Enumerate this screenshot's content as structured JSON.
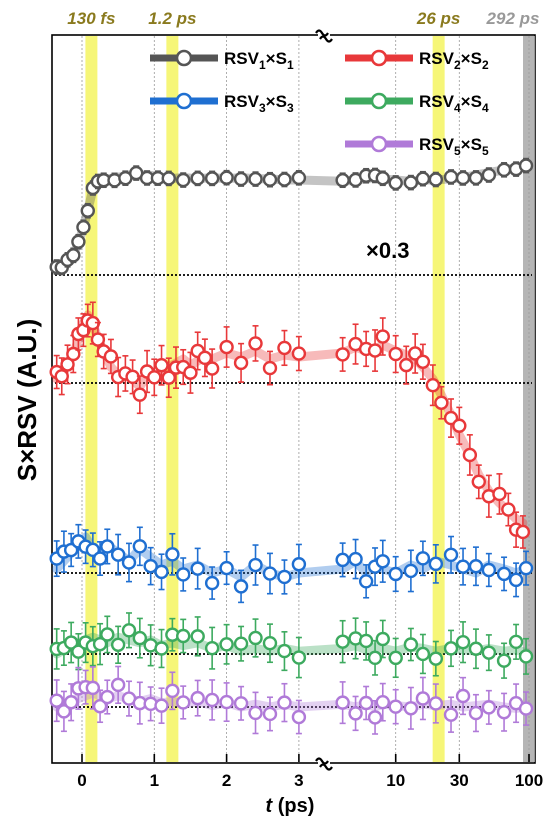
{
  "chart_data": {
    "type": "scatter",
    "title": "",
    "ylabel": "S×RSV (A.U.)",
    "xlabel_italic": "t",
    "xlabel_rest": " (ps)",
    "x_scale": "piecewise: linear -0.5 to 3 ps, then logarithmic 3 to 100 ps, with axis break at 3 ps",
    "xlim": [
      -0.4,
      100
    ],
    "x_ticks": [
      {
        "value": 0,
        "label": "0"
      },
      {
        "value": 1,
        "label": "1"
      },
      {
        "value": 2,
        "label": "2"
      },
      {
        "value": 3,
        "label": "3"
      },
      {
        "value": 10,
        "label": "10"
      },
      {
        "value": 30,
        "label": "30"
      },
      {
        "value": 100,
        "label": "100"
      }
    ],
    "top_annotations": [
      {
        "text": "130 fs",
        "x": 0.13,
        "color": "#8a7a1e"
      },
      {
        "text": "1.2 ps",
        "x": 1.25,
        "color": "#8a7a1e"
      },
      {
        "text": "26 ps",
        "x": 21,
        "color": "#8a7a1e"
      },
      {
        "text": "292 ps",
        "x": 100,
        "color": "#999999"
      }
    ],
    "highlight_bands": [
      {
        "x": 0.13,
        "color": "#f5f560"
      },
      {
        "x": 1.25,
        "color": "#f5f560"
      },
      {
        "x": 21,
        "color": "#f5f560"
      },
      {
        "x": 100,
        "color": "#a8a8a8"
      }
    ],
    "scale_annotation": "×0.3",
    "legend": [
      {
        "base": "RSV",
        "sub1": "1",
        "mid": "×S",
        "sub2": "1",
        "color": "#555555"
      },
      {
        "base": "RSV",
        "sub1": "2",
        "mid": "×S",
        "sub2": "2",
        "color": "#e8383a"
      },
      {
        "base": "RSV",
        "sub1": "3",
        "mid": "×S",
        "sub2": "3",
        "color": "#1f6fd1"
      },
      {
        "base": "RSV",
        "sub1": "4",
        "mid": "×S",
        "sub2": "4",
        "color": "#3daa5f"
      },
      {
        "base": "RSV",
        "sub1": "5",
        "mid": "×S",
        "sub2": "5",
        "color": "#b07ad8"
      }
    ],
    "series": [
      {
        "name": "RSV1×S1",
        "color": "#555555",
        "baseline": 0,
        "points": [
          [
            -0.35,
            0.4
          ],
          [
            -0.28,
            0.8
          ],
          [
            -0.2,
            1.0
          ],
          [
            -0.12,
            1.6
          ],
          [
            -0.05,
            2.6
          ],
          [
            0.02,
            3.8
          ],
          [
            0.08,
            5.2
          ],
          [
            0.15,
            6.8
          ],
          [
            0.22,
            7.4
          ],
          [
            0.3,
            7.6
          ],
          [
            0.45,
            7.8
          ],
          [
            0.6,
            7.9
          ],
          [
            0.75,
            8.0
          ],
          [
            0.9,
            8.0
          ],
          [
            1.05,
            7.9
          ],
          [
            1.2,
            7.7
          ],
          [
            1.4,
            7.8
          ],
          [
            1.6,
            7.7
          ],
          [
            1.8,
            7.8
          ],
          [
            2.0,
            7.7
          ],
          [
            2.2,
            7.8
          ],
          [
            2.4,
            7.7
          ],
          [
            2.6,
            7.7
          ],
          [
            2.8,
            7.6
          ],
          [
            3.0,
            7.6
          ],
          [
            4,
            7.5
          ],
          [
            5,
            7.6
          ],
          [
            6,
            7.7
          ],
          [
            7,
            7.8
          ],
          [
            8,
            7.7
          ],
          [
            10,
            7.6
          ],
          [
            13,
            7.5
          ],
          [
            16,
            7.6
          ],
          [
            20,
            7.6
          ],
          [
            26,
            7.7
          ],
          [
            32,
            7.8
          ],
          [
            40,
            8.0
          ],
          [
            50,
            8.2
          ],
          [
            65,
            8.4
          ],
          [
            80,
            8.6
          ],
          [
            95,
            8.8
          ]
        ]
      },
      {
        "name": "RSV2×S2",
        "color": "#e8383a",
        "baseline": 0,
        "points": [
          [
            -0.35,
            0.2
          ],
          [
            -0.28,
            0.6
          ],
          [
            -0.2,
            1.0
          ],
          [
            -0.12,
            1.4
          ],
          [
            -0.05,
            2.2
          ],
          [
            0.02,
            3.0
          ],
          [
            0.08,
            3.4
          ],
          [
            0.15,
            3.0
          ],
          [
            0.22,
            2.2
          ],
          [
            0.3,
            1.6
          ],
          [
            0.4,
            0.8
          ],
          [
            0.5,
            0.4
          ],
          [
            0.6,
            0.6
          ],
          [
            0.7,
            0.2
          ],
          [
            0.8,
            -0.2
          ],
          [
            0.9,
            0.4
          ],
          [
            1.0,
            0.2
          ],
          [
            1.1,
            0.6
          ],
          [
            1.2,
            0.8
          ],
          [
            1.3,
            1.0
          ],
          [
            1.4,
            1.2
          ],
          [
            1.5,
            0.9
          ],
          [
            1.6,
            1.1
          ],
          [
            1.7,
            1.4
          ],
          [
            1.8,
            1.2
          ],
          [
            2.0,
            1.5
          ],
          [
            2.2,
            1.3
          ],
          [
            2.4,
            1.6
          ],
          [
            2.6,
            1.2
          ],
          [
            2.8,
            1.4
          ],
          [
            3.0,
            1.3
          ],
          [
            4,
            1.5
          ],
          [
            5,
            1.8
          ],
          [
            6,
            1.6
          ],
          [
            7,
            1.7
          ],
          [
            8,
            1.9
          ],
          [
            10,
            1.6
          ],
          [
            12,
            1.4
          ],
          [
            14,
            1.2
          ],
          [
            16,
            0.8
          ],
          [
            19,
            0.2
          ],
          [
            22,
            -0.6
          ],
          [
            26,
            -1.6
          ],
          [
            30,
            -2.6
          ],
          [
            36,
            -3.6
          ],
          [
            42,
            -4.6
          ],
          [
            50,
            -5.4
          ],
          [
            60,
            -6.0
          ],
          [
            70,
            -6.4
          ],
          [
            80,
            -6.8
          ],
          [
            90,
            -7.0
          ]
        ]
      },
      {
        "name": "RSV3×S3",
        "color": "#1f6fd1",
        "baseline": 0,
        "points": [
          [
            -0.35,
            0.2
          ],
          [
            -0.25,
            0.6
          ],
          [
            -0.15,
            1.0
          ],
          [
            -0.05,
            1.4
          ],
          [
            0.05,
            1.8
          ],
          [
            0.15,
            1.2
          ],
          [
            0.25,
            0.8
          ],
          [
            0.35,
            1.4
          ],
          [
            0.5,
            1.0
          ],
          [
            0.65,
            0.6
          ],
          [
            0.8,
            1.2
          ],
          [
            0.95,
            0.8
          ],
          [
            1.1,
            0.4
          ],
          [
            1.25,
            0.6
          ],
          [
            1.4,
            0.2
          ],
          [
            1.6,
            0.4
          ],
          [
            1.8,
            0.0
          ],
          [
            2.0,
            0.2
          ],
          [
            2.2,
            -0.2
          ],
          [
            2.4,
            0.4
          ],
          [
            2.6,
            0.0
          ],
          [
            2.8,
            -0.2
          ],
          [
            3.0,
            0.0
          ],
          [
            4,
            0.2
          ],
          [
            5,
            0.6
          ],
          [
            6,
            0.0
          ],
          [
            7,
            0.4
          ],
          [
            8,
            0.2
          ],
          [
            10,
            0.0
          ],
          [
            13,
            0.4
          ],
          [
            16,
            0.2
          ],
          [
            20,
            0.6
          ],
          [
            26,
            0.4
          ],
          [
            32,
            0.2
          ],
          [
            40,
            0.0
          ],
          [
            50,
            0.4
          ],
          [
            65,
            0.2
          ],
          [
            80,
            0.0
          ],
          [
            95,
            0.2
          ]
        ]
      },
      {
        "name": "RSV4×S4",
        "color": "#3daa5f",
        "baseline": 0,
        "points": [
          [
            -0.35,
            0.0
          ],
          [
            -0.25,
            0.3
          ],
          [
            -0.15,
            0.5
          ],
          [
            -0.05,
            0.8
          ],
          [
            0.05,
            1.0
          ],
          [
            0.15,
            1.2
          ],
          [
            0.25,
            1.0
          ],
          [
            0.35,
            0.8
          ],
          [
            0.5,
            1.2
          ],
          [
            0.65,
            1.0
          ],
          [
            0.8,
            0.8
          ],
          [
            0.95,
            1.0
          ],
          [
            1.1,
            0.6
          ],
          [
            1.25,
            0.8
          ],
          [
            1.4,
            0.6
          ],
          [
            1.6,
            0.8
          ],
          [
            1.8,
            0.4
          ],
          [
            2.0,
            0.6
          ],
          [
            2.2,
            0.2
          ],
          [
            2.4,
            0.4
          ],
          [
            2.6,
            0.2
          ],
          [
            2.8,
            0.4
          ],
          [
            3.0,
            0.2
          ],
          [
            4,
            0.4
          ],
          [
            5,
            0.6
          ],
          [
            6,
            0.3
          ],
          [
            7,
            0.5
          ],
          [
            8,
            0.4
          ],
          [
            10,
            0.2
          ],
          [
            13,
            0.5
          ],
          [
            16,
            0.4
          ],
          [
            20,
            0.2
          ],
          [
            26,
            0.4
          ],
          [
            32,
            0.3
          ],
          [
            40,
            0.2
          ],
          [
            50,
            0.4
          ],
          [
            65,
            0.2
          ],
          [
            80,
            0.3
          ],
          [
            95,
            0.1
          ]
        ]
      },
      {
        "name": "RSV5×S5",
        "color": "#b07ad8",
        "baseline": 0,
        "points": [
          [
            -0.35,
            0.0
          ],
          [
            -0.25,
            0.2
          ],
          [
            -0.15,
            0.4
          ],
          [
            -0.05,
            0.6
          ],
          [
            0.05,
            0.8
          ],
          [
            0.15,
            1.0
          ],
          [
            0.25,
            0.8
          ],
          [
            0.35,
            0.6
          ],
          [
            0.5,
            0.8
          ],
          [
            0.65,
            0.6
          ],
          [
            0.8,
            0.4
          ],
          [
            0.95,
            0.6
          ],
          [
            1.1,
            0.3
          ],
          [
            1.25,
            0.4
          ],
          [
            1.4,
            0.2
          ],
          [
            1.6,
            0.4
          ],
          [
            1.8,
            0.1
          ],
          [
            2.0,
            0.3
          ],
          [
            2.2,
            0.0
          ],
          [
            2.4,
            0.2
          ],
          [
            2.6,
            0.0
          ],
          [
            2.8,
            0.2
          ],
          [
            3.0,
            0.0
          ],
          [
            4,
            0.2
          ],
          [
            5,
            0.0
          ],
          [
            6,
            0.2
          ],
          [
            7,
            0.0
          ],
          [
            8,
            0.2
          ],
          [
            10,
            0.1
          ],
          [
            13,
            0.0
          ],
          [
            16,
            0.2
          ],
          [
            20,
            0.1
          ],
          [
            26,
            0.2
          ],
          [
            32,
            0.0
          ],
          [
            40,
            0.1
          ],
          [
            50,
            0.2
          ],
          [
            65,
            0.0
          ],
          [
            80,
            -0.1
          ],
          [
            95,
            0.0
          ]
        ]
      }
    ],
    "grid": "vertical dotted lines at ticks",
    "legend_position": "top, inside plot"
  }
}
